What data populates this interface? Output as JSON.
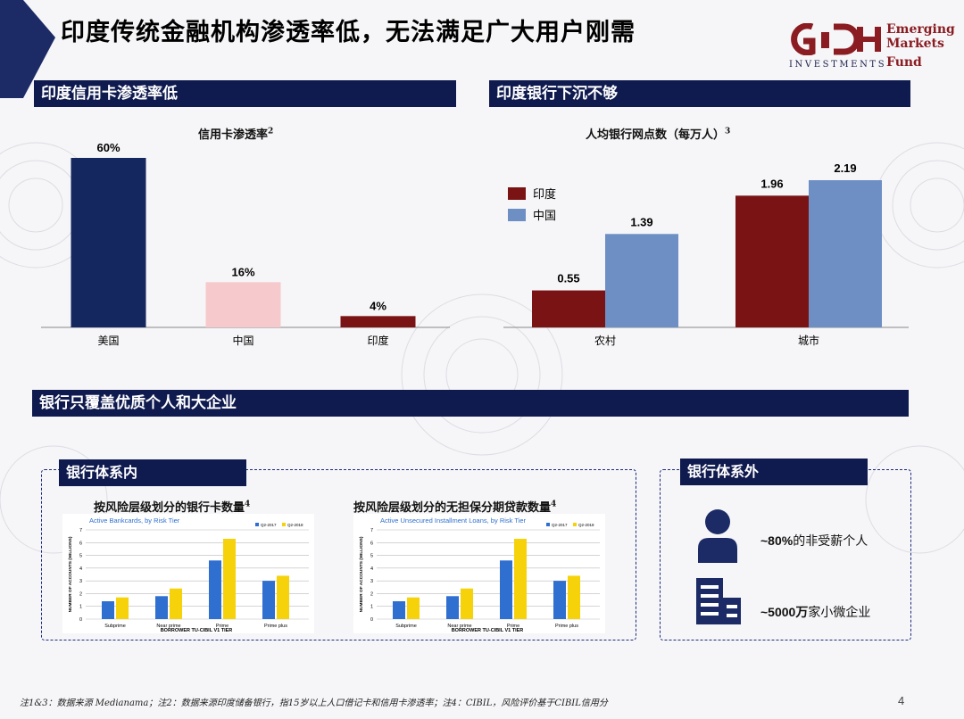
{
  "header": {
    "title": "印度传统金融机构渗透率低，无法满足广大用户刚需",
    "logo": {
      "word1": "Emerging",
      "word2": "Markets",
      "word3": "Fund",
      "investments": "INVESTMENTS",
      "brand_color": "#8a1c22"
    }
  },
  "sections": {
    "credit_card": "印度信用卡渗透率低",
    "banks": "印度银行下沉不够",
    "coverage": "银行只覆盖优质个人和大企业"
  },
  "chart_data": [
    {
      "type": "bar",
      "title": "信用卡渗透率",
      "title_note": "2",
      "categories": [
        "美国",
        "中国",
        "印度"
      ],
      "values": [
        60,
        16,
        4
      ],
      "value_labels": [
        "60%",
        "16%",
        "4%"
      ],
      "colors": [
        "#15275f",
        "#f6c9cc",
        "#7a1414"
      ],
      "ylim": [
        0,
        60
      ]
    },
    {
      "type": "bar",
      "title": "人均银行网点数（每万人）",
      "title_note": "3",
      "categories": [
        "农村",
        "城市"
      ],
      "series": [
        {
          "name": "印度",
          "values": [
            0.55,
            1.96
          ],
          "color": "#7a1414"
        },
        {
          "name": "中国",
          "values": [
            1.39,
            2.19
          ],
          "color": "#6e8fc4"
        }
      ],
      "ylim": [
        0,
        2.19
      ],
      "legend": "top-left"
    },
    {
      "type": "bar",
      "subtitle": "Active Bankcards, by Risk Tier",
      "xlabel": "BORROWER TU-CIBIL V1 TIER",
      "ylabel": "NUMBER OF ACCOUNTS (MILLIONS)",
      "categories": [
        "Subprime",
        "Near prime",
        "Prime",
        "Prime plus"
      ],
      "series": [
        {
          "name": "Q2-2017",
          "values": [
            1.4,
            1.8,
            4.6,
            3.0
          ],
          "color": "#2f6fd0"
        },
        {
          "name": "Q2-2018",
          "values": [
            1.7,
            2.4,
            6.3,
            3.4
          ],
          "color": "#f5d20a"
        }
      ],
      "ylim": [
        0,
        7
      ],
      "yticks": [
        0,
        1,
        2,
        3,
        4,
        5,
        6,
        7
      ],
      "legend": "top-right"
    },
    {
      "type": "bar",
      "subtitle": "Active Unsecured Installment Loans, by Risk Tier",
      "xlabel": "BORROWER TU-CIBIL V1 TIER",
      "ylabel": "NUMBER OF ACCOUNTS (MILLIONS)",
      "categories": [
        "Subprime",
        "Near prime",
        "Prime",
        "Prime plus"
      ],
      "series": [
        {
          "name": "Q2-2017",
          "values": [
            1.4,
            1.8,
            4.6,
            3.0
          ],
          "color": "#2f6fd0"
        },
        {
          "name": "Q2-2018",
          "values": [
            1.7,
            2.4,
            6.3,
            3.4
          ],
          "color": "#f5d20a"
        }
      ],
      "ylim": [
        0,
        7
      ],
      "yticks": [
        0,
        1,
        2,
        3,
        4,
        5,
        6,
        7
      ],
      "legend": "top-right"
    }
  ],
  "inside": {
    "label": "银行体系内",
    "chart1_title": "按风险层级划分的银行卡数量",
    "chart1_note": "4",
    "chart2_title": "按风险层级划分的无担保分期贷款数量",
    "chart2_note": "4"
  },
  "outside": {
    "label": "银行体系外",
    "stat1_value": "~80%",
    "stat1_text": "的非受薪个人",
    "stat2_value": "~5000万",
    "stat2_text": "家小微企业"
  },
  "footnote": "注1&3：数据来源 Medianama；注2：数据来源印度储备银行，指15岁以上人口借记卡和信用卡渗透率；注4：CIBIL，风险评价基于CIBIL信用分",
  "page_number": "4"
}
